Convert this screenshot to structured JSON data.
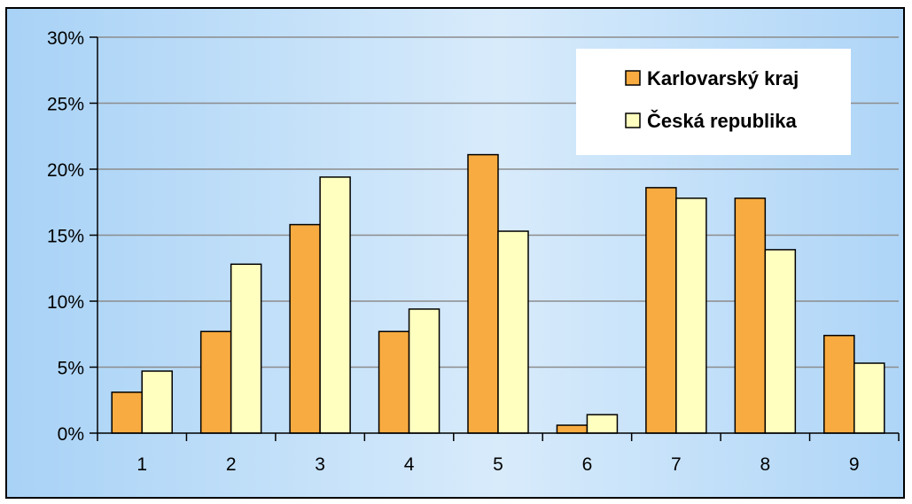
{
  "chart_data": {
    "type": "bar",
    "title": "",
    "xlabel": "",
    "ylabel": "",
    "categories": [
      "1",
      "2",
      "3",
      "4",
      "5",
      "6",
      "7",
      "8",
      "9"
    ],
    "series": [
      {
        "name": "Karlovarský kraj",
        "color": "#f8ab40",
        "values": [
          3.1,
          7.7,
          15.8,
          7.7,
          21.1,
          0.6,
          18.6,
          17.8,
          7.4
        ]
      },
      {
        "name": "Česká republika",
        "color": "#ffffc0",
        "values": [
          4.7,
          12.8,
          19.4,
          9.4,
          15.3,
          1.4,
          17.8,
          13.9,
          5.3
        ]
      }
    ],
    "ylim": [
      0,
      30
    ],
    "yticks": [
      0,
      5,
      10,
      15,
      20,
      25,
      30
    ],
    "ytick_labels": [
      "0%",
      "5%",
      "10%",
      "15%",
      "20%",
      "25%",
      "30%"
    ],
    "grid": true,
    "legend_position": "top-right"
  }
}
